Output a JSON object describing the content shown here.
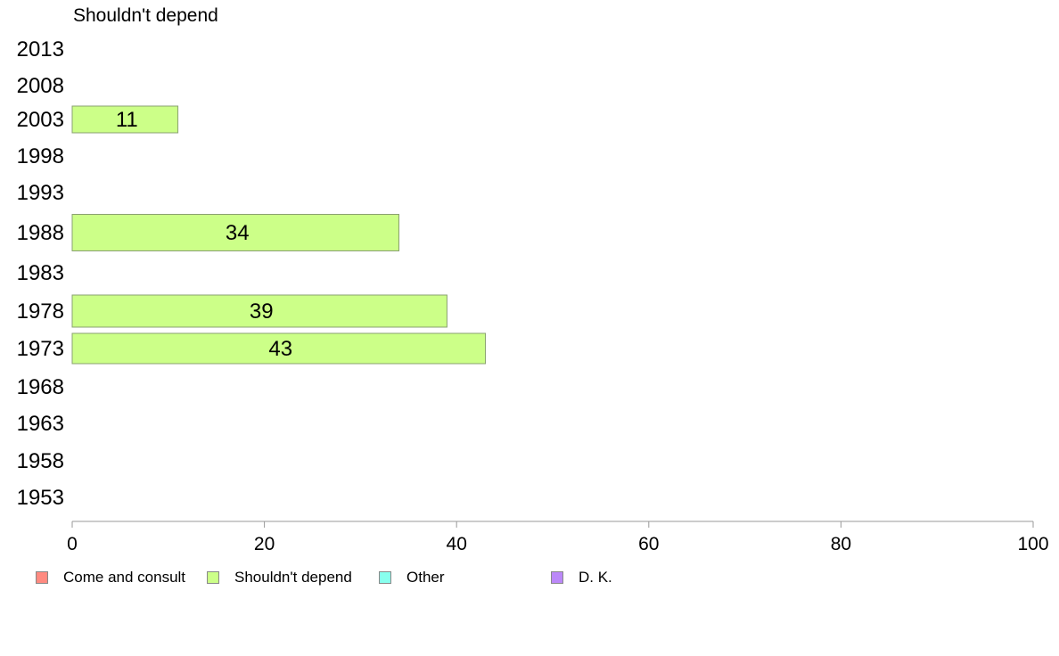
{
  "chart_data": {
    "type": "bar",
    "orientation": "horizontal",
    "subtitle": "Shouldn't depend",
    "categories": [
      "2013",
      "2008",
      "2003",
      "1998",
      "1993",
      "1988",
      "1983",
      "1978",
      "1973",
      "1968",
      "1963",
      "1958",
      "1953"
    ],
    "series": [
      {
        "name": "Shouldn't depend",
        "color": "#ccff88",
        "values": [
          null,
          null,
          11,
          null,
          null,
          34,
          null,
          39,
          43,
          null,
          null,
          null,
          null
        ]
      }
    ],
    "xlim": [
      0,
      100
    ],
    "xticks": [
      0,
      20,
      40,
      60,
      80,
      100
    ],
    "grid": false,
    "legend_position": "bottom",
    "legend": [
      {
        "label": "Come and consult",
        "color": "#ff8a80"
      },
      {
        "label": "Shouldn't depend",
        "color": "#ccff88"
      },
      {
        "label": "Other",
        "color": "#88ffee"
      },
      {
        "label": "D. K.",
        "color": "#bb88f8"
      }
    ]
  }
}
